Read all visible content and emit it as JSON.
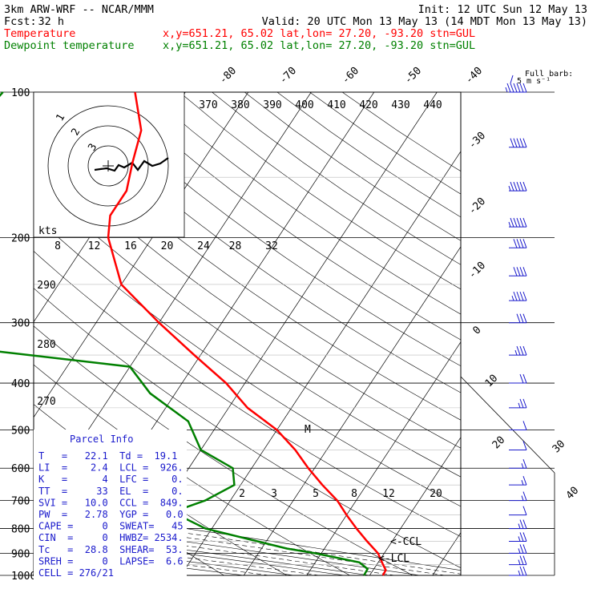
{
  "header": {
    "model": "3km ARW-WRF -- NCAR/MMM",
    "init": "Init: 12 UTC Sun 12 May 13",
    "fcst_label": "Fcst:",
    "fcst_value": "32 h",
    "valid": "Valid: 20 UTC Mon 13 May 13 (14 MDT Mon 13 May 13)",
    "temp_label": "Temperature",
    "temp_loc": "x,y=651.21, 65.02   lat,lon= 27.20, -93.20  stn=GUL",
    "dew_label": "Dewpoint temperature",
    "dew_loc": "x,y=651.21, 65.02   lat,lon= 27.20, -93.20  stn=GUL",
    "barb_legend": "Full barb:",
    "barb_units": "5 m s⁻¹"
  },
  "colors": {
    "temperature": "#ff0000",
    "dewpoint": "#008000",
    "parcel_info": "#1a1acc",
    "barbs": "#1a1acc"
  },
  "chart_data": {
    "type": "line",
    "title": "",
    "ylabel": "",
    "pressure_levels": [
      "100",
      "200",
      "300",
      "400",
      "500",
      "600",
      "700",
      "800",
      "900",
      "1000"
    ],
    "temp_ticks": [
      "-80",
      "-70",
      "-60",
      "-50",
      "-40",
      "-30",
      "-20",
      "-10",
      "0",
      "10",
      "20",
      "30",
      "40"
    ],
    "theta_labels": [
      "370",
      "380",
      "390",
      "400",
      "410",
      "420",
      "430",
      "440"
    ],
    "theta_left": [
      "290",
      "280",
      "270"
    ],
    "wind_speed_rings": [
      "8",
      "12",
      "16",
      "20",
      "24",
      "28",
      "32"
    ],
    "kts_label": "kts",
    "mixing_ratio_labels": [
      "2",
      "3",
      "5",
      "8",
      "12",
      "20"
    ],
    "ccl_label": "<-CCL",
    "lcl_label": "<-LCL",
    "m_marker": "M",
    "hodo_labels": [
      "3",
      "2",
      "1"
    ],
    "series": [
      {
        "name": "Temperature",
        "points": [
          [
            100,
            -68
          ],
          [
            120,
            -63
          ],
          [
            140,
            -61
          ],
          [
            160,
            -59
          ],
          [
            180,
            -59
          ],
          [
            200,
            -57
          ],
          [
            250,
            -50
          ],
          [
            300,
            -40
          ],
          [
            350,
            -31
          ],
          [
            400,
            -23
          ],
          [
            450,
            -17
          ],
          [
            500,
            -10
          ],
          [
            550,
            -5
          ],
          [
            600,
            -1
          ],
          [
            650,
            3
          ],
          [
            700,
            7
          ],
          [
            750,
            10
          ],
          [
            800,
            13
          ],
          [
            850,
            16
          ],
          [
            900,
            19
          ],
          [
            950,
            21
          ],
          [
            975,
            22
          ],
          [
            1000,
            22.1
          ]
        ]
      },
      {
        "name": "Dewpoint temperature",
        "points": [
          [
            100,
            -89
          ],
          [
            150,
            -92
          ],
          [
            200,
            -92
          ],
          [
            250,
            -87
          ],
          [
            280,
            -83
          ],
          [
            300,
            -83
          ],
          [
            320,
            -85
          ],
          [
            370,
            -40
          ],
          [
            420,
            -34
          ],
          [
            480,
            -25
          ],
          [
            550,
            -20
          ],
          [
            600,
            -13
          ],
          [
            650,
            -11
          ],
          [
            700,
            -14
          ],
          [
            740,
            -18
          ],
          [
            800,
            -11
          ],
          [
            880,
            4
          ],
          [
            900,
            9
          ],
          [
            940,
            17
          ],
          [
            970,
            19
          ],
          [
            1000,
            19.1
          ]
        ]
      }
    ],
    "wind_barbs": [
      {
        "p": 100,
        "kt": 55
      },
      {
        "p": 130,
        "kt": 50
      },
      {
        "p": 160,
        "kt": 45
      },
      {
        "p": 190,
        "kt": 45
      },
      {
        "p": 210,
        "kt": 40
      },
      {
        "p": 240,
        "kt": 40
      },
      {
        "p": 270,
        "kt": 35
      },
      {
        "p": 300,
        "kt": 30
      },
      {
        "p": 350,
        "kt": 25
      },
      {
        "p": 400,
        "kt": 20
      },
      {
        "p": 450,
        "kt": 15
      },
      {
        "p": 500,
        "kt": 10
      },
      {
        "p": 550,
        "kt": 10
      },
      {
        "p": 600,
        "kt": 5
      },
      {
        "p": 650,
        "kt": 5
      },
      {
        "p": 700,
        "kt": 5
      },
      {
        "p": 750,
        "kt": 10
      },
      {
        "p": 800,
        "kt": 15
      },
      {
        "p": 850,
        "kt": 15
      },
      {
        "p": 900,
        "kt": 15
      },
      {
        "p": 950,
        "kt": 15
      },
      {
        "p": 1000,
        "kt": 15
      }
    ]
  },
  "parcel_info": {
    "title": "Parcel Info",
    "rows": [
      "T   =   22.1  Td =  19.1",
      "LI  =    2.4  LCL =  926.",
      "K   =      4  LFC =    0.",
      "TT  =     33  EL  =    0.",
      "SVI =   10.0  CCL =  849.",
      "PW  =   2.78  YGP =   0.0",
      "CAPE =     0  SWEAT=   45",
      "CIN  =     0  HWBZ= 2534.",
      "Tc   =  28.8  SHEAR=  53.",
      "SREH =     0  LAPSE=  6.6",
      "CELL = 276/21"
    ]
  }
}
